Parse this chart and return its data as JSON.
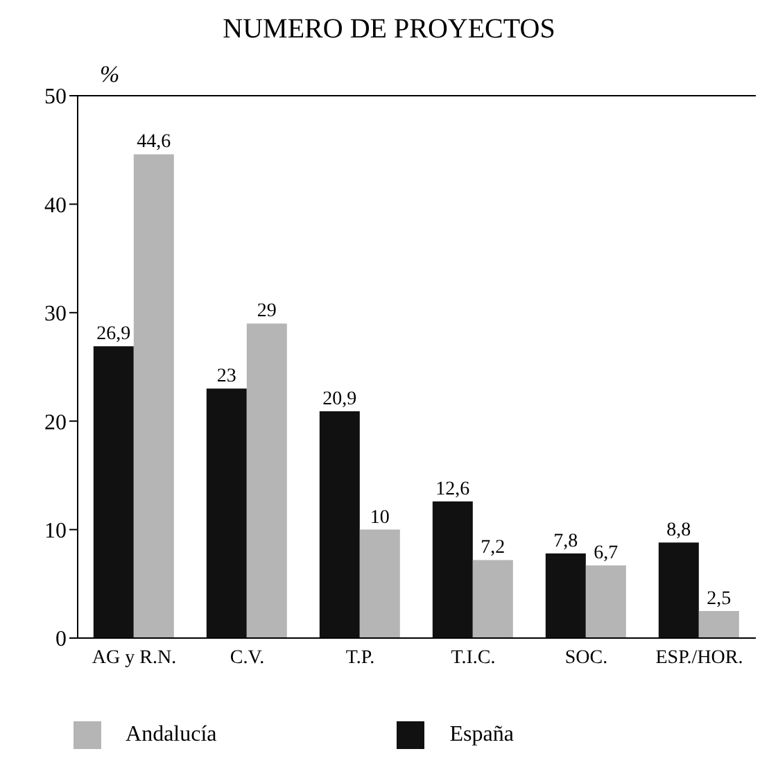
{
  "chart_data": {
    "type": "bar",
    "title": "NUMERO DE PROYECTOS",
    "ylabel": "%",
    "categories": [
      "AG y R.N.",
      "C.V.",
      "T.P.",
      "T.I.C.",
      "SOC.",
      "ESP./HOR."
    ],
    "series": [
      {
        "name": "España",
        "color": "#111111",
        "values": [
          26.9,
          23,
          20.9,
          12.6,
          7.8,
          8.8
        ],
        "value_labels": [
          "26,9",
          "23",
          "20,9",
          "12,6",
          "7,8",
          "8,8"
        ]
      },
      {
        "name": "Andalucía",
        "color": "#b5b5b5",
        "values": [
          44.6,
          29,
          10,
          7.2,
          6.7,
          2.5
        ],
        "value_labels": [
          "44,6",
          "29",
          "10",
          "7,2",
          "6,7",
          "2,5"
        ]
      }
    ],
    "ylim": [
      0,
      50
    ],
    "yticks": [
      0,
      10,
      20,
      30,
      40,
      50
    ],
    "grid": false,
    "legend": "bottom"
  }
}
